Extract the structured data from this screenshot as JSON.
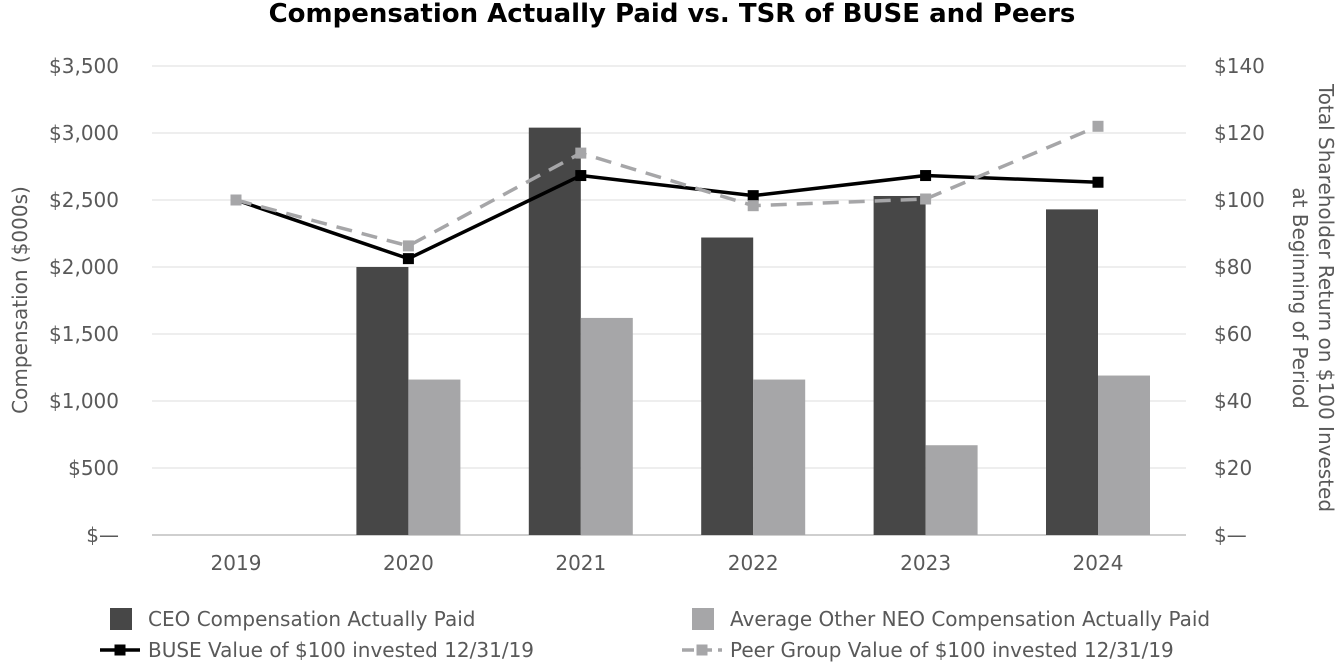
{
  "chart_data": {
    "type": "bar",
    "title": "Compensation Actually Paid vs. TSR of BUSE and Peers",
    "categories": [
      "2019",
      "2020",
      "2021",
      "2022",
      "2023",
      "2024"
    ],
    "ylabel": "Compensation ($000s)",
    "y2label_line1": "Total Shareholder Return on $100 Invested",
    "y2label_line2": "at Beginning of Period",
    "ylim": [
      0,
      3500
    ],
    "y2lim": [
      0,
      140
    ],
    "yticks": [
      {
        "value": 0,
        "label": "$—"
      },
      {
        "value": 500,
        "label": "$500"
      },
      {
        "value": 1000,
        "label": "$1,000"
      },
      {
        "value": 1500,
        "label": "$1,500"
      },
      {
        "value": 2000,
        "label": "$2,000"
      },
      {
        "value": 2500,
        "label": "$2,500"
      },
      {
        "value": 3000,
        "label": "$3,000"
      },
      {
        "value": 3500,
        "label": "$3,500"
      }
    ],
    "y2ticks": [
      {
        "value": 0,
        "label": "$—"
      },
      {
        "value": 20,
        "label": "$20"
      },
      {
        "value": 40,
        "label": "$40"
      },
      {
        "value": 60,
        "label": "$60"
      },
      {
        "value": 80,
        "label": "$80"
      },
      {
        "value": 100,
        "label": "$100"
      },
      {
        "value": 120,
        "label": "$120"
      },
      {
        "value": 140,
        "label": "$140"
      }
    ],
    "grid": true,
    "bar_series": [
      {
        "name": "CEO Compensation Actually Paid",
        "color": "#474747",
        "values": [
          null,
          2000,
          3040,
          2220,
          2530,
          2430
        ]
      },
      {
        "name": "Average Other NEO Compensation Actually Paid",
        "color": "#a6a6a8",
        "values": [
          null,
          1160,
          1620,
          1160,
          670,
          1190
        ]
      }
    ],
    "line_series": [
      {
        "name": "BUSE Value of $100 invested 12/31/19",
        "color": "#000000",
        "style": "solid",
        "values": [
          100,
          82.5,
          107.3,
          101.3,
          107.3,
          105.3
        ]
      },
      {
        "name": "Peer Group Value of $100 invested 12/31/19",
        "color": "#a6a6a8",
        "style": "dashed",
        "values": [
          100,
          86.3,
          114.0,
          98.3,
          100.3,
          122.0
        ]
      }
    ],
    "legend_position": "bottom"
  }
}
